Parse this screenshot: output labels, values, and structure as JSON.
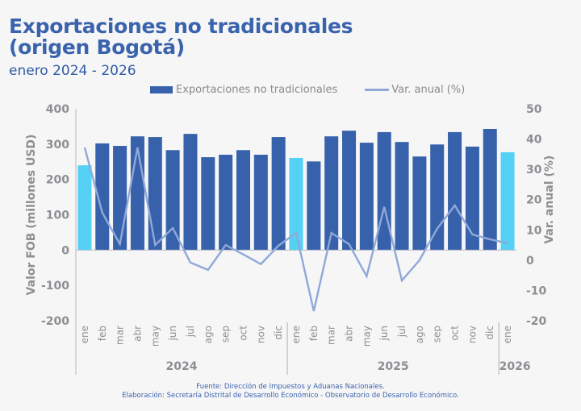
{
  "header": {
    "title_line1": "Exportaciones no tradicionales",
    "title_line2": "(origen Bogotá)",
    "subtitle": "enero 2024 - 2026"
  },
  "legend": {
    "bars": "Exportaciones no tradicionales",
    "line": "Var. anual (%)"
  },
  "footer": {
    "source": "Fuente: Dirección de Impuestos y Aduanas Nacionales.",
    "elaboration": "Elaboración: Secretaría Distrital de Desarrollo Económico - Observatorio de Desarrollo Económico."
  },
  "colors": {
    "bar_dark": "#3762ab",
    "bar_light": "#55d1f5",
    "line": "#8fa8d8",
    "title": "#3a63ad"
  },
  "chart_data": {
    "type": "bar",
    "title": "Exportaciones no tradicionales (origen Bogotá)",
    "subtitle": "enero 2024 - 2026",
    "categories": [
      "ene",
      "feb",
      "mar",
      "abr",
      "may",
      "jun",
      "jul",
      "ago",
      "sep",
      "oct",
      "nov",
      "dic",
      "ene",
      "feb",
      "mar",
      "abr",
      "may",
      "jun",
      "jul",
      "ago",
      "sep",
      "oct",
      "nov",
      "dic",
      "ene"
    ],
    "year_groups": [
      {
        "label": "2024",
        "count": 12
      },
      {
        "label": "2025",
        "count": 12
      },
      {
        "label": "2026",
        "count": 1
      }
    ],
    "highlight_indices": [
      0,
      12,
      24
    ],
    "series": [
      {
        "name": "Exportaciones no tradicionales",
        "type": "bar",
        "axis": "left",
        "values": [
          240,
          302,
          295,
          322,
          320,
          283,
          329,
          263,
          270,
          283,
          270,
          320,
          261,
          251,
          322,
          338,
          304,
          334,
          306,
          265,
          299,
          334,
          293,
          343,
          277
        ]
      },
      {
        "name": "Var. anual (%)",
        "type": "line",
        "axis": "right",
        "values": [
          37.2,
          15.7,
          5.3,
          37.2,
          5.0,
          10.6,
          -0.8,
          -3.2,
          5.0,
          1.9,
          -1.3,
          4.8,
          9.0,
          -16.8,
          9.0,
          5.3,
          -5.3,
          17.6,
          -6.7,
          0.0,
          10.4,
          18.1,
          8.5,
          6.9,
          5.6
        ]
      }
    ],
    "ylabel": "Valor FOB (millones USD)",
    "ylim": [
      -200,
      400
    ],
    "yticks": [
      -200,
      -100,
      0,
      100,
      200,
      300,
      400
    ],
    "y2label": "Var. anual (%)",
    "y2lim": [
      -20,
      50
    ],
    "y2ticks": [
      -20,
      -10,
      0,
      10,
      20,
      30,
      40,
      50
    ],
    "grid": false,
    "legend_position": "top"
  }
}
